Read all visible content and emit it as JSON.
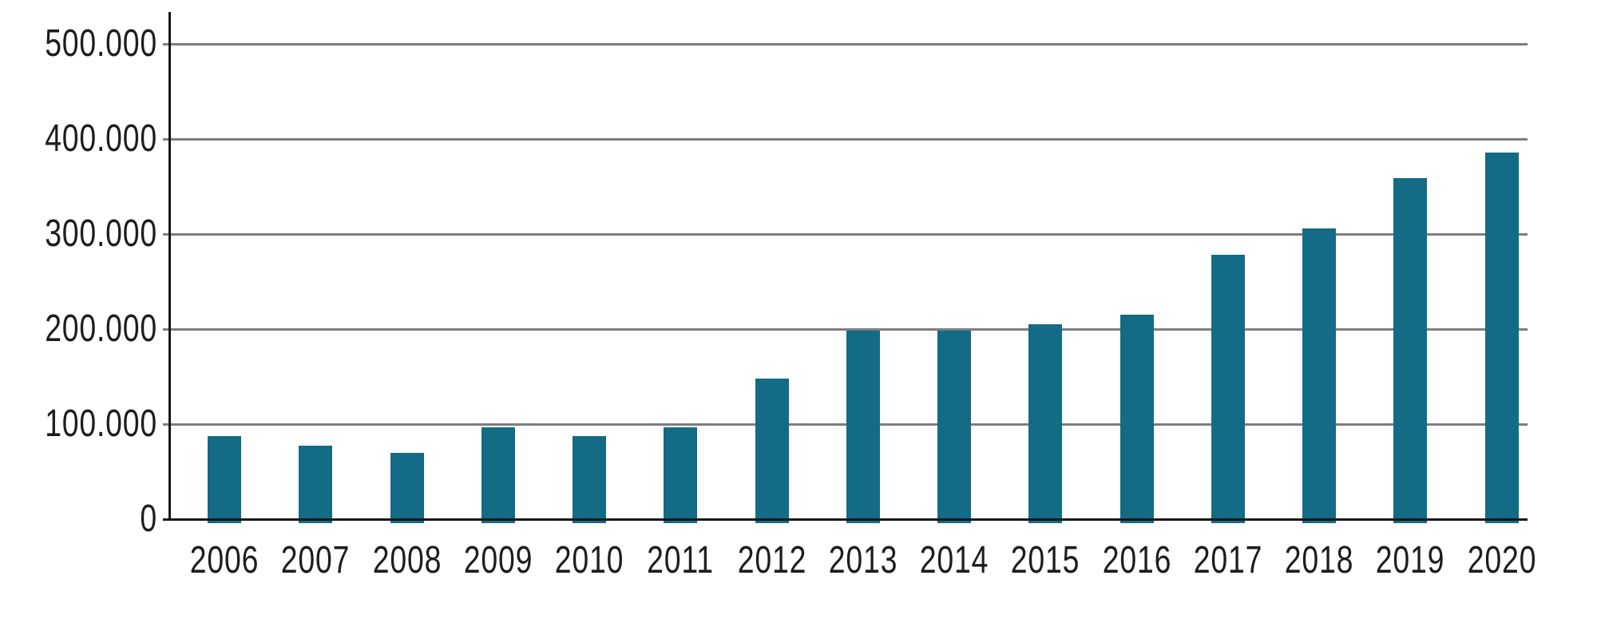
{
  "chart_data": {
    "type": "bar",
    "title": "",
    "xlabel": "",
    "ylabel": "",
    "categories": [
      "2006",
      "2007",
      "2008",
      "2009",
      "2010",
      "2011",
      "2012",
      "2013",
      "2014",
      "2015",
      "2016",
      "2017",
      "2018",
      "2019",
      "2020"
    ],
    "values": [
      87000,
      77000,
      70000,
      97000,
      87000,
      97000,
      148000,
      198000,
      198000,
      205000,
      215000,
      278000,
      306000,
      359000,
      386000
    ],
    "y_axis": {
      "min": 0,
      "max": 500000,
      "tick_interval": 100000,
      "tick_labels": [
        "0",
        "100.000",
        "200.000",
        "300.000",
        "400.000",
        "500.000"
      ]
    },
    "grid": true,
    "legend": false,
    "colors": {
      "bar": "#136b85",
      "gridline": "#7e7e7e",
      "axis": "#161616",
      "text": "#1d1d1d",
      "background": "#ffffff"
    }
  }
}
